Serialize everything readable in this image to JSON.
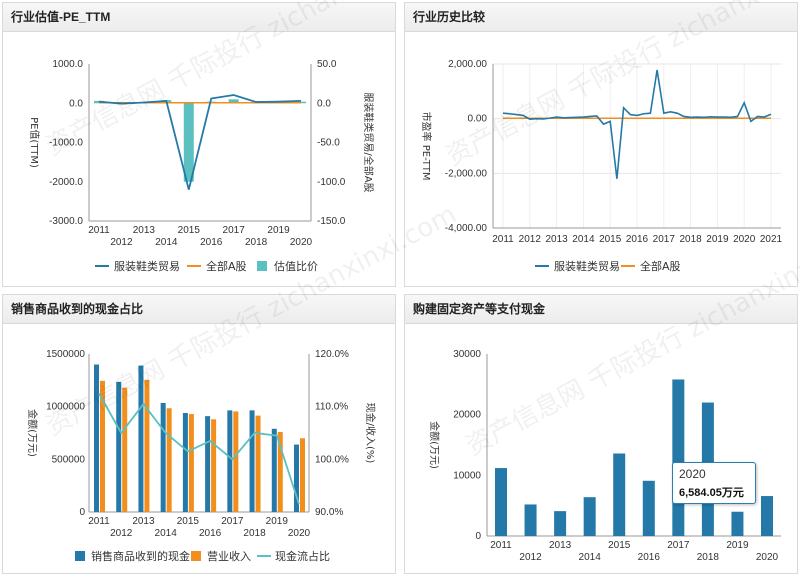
{
  "watermark": "资产信息网 千际投行 zichanxinxi.com",
  "colors": {
    "blue": "#2479a8",
    "orange": "#f28e1c",
    "teal": "#5cc0c0",
    "axis": "#999999"
  },
  "chart_data": [
    {
      "type": "bar+line",
      "title": "行业估值-PE_TTM",
      "ylabel": "PE值(TTM)",
      "y2label": "服装鞋类贸易/全部A股",
      "categories": [
        "2011",
        "2012",
        "2013",
        "2014",
        "2015",
        "2016",
        "2017",
        "2018",
        "2019",
        "2020"
      ],
      "yticks": [
        "1000.0",
        "0.0",
        "-1000.0",
        "-2000.0",
        "-3000.0"
      ],
      "y2ticks": [
        "50.0",
        "0.0",
        "-50.0",
        "-100.0",
        "-150.0"
      ],
      "ylim": [
        -3000,
        1000
      ],
      "y2lim": [
        -150,
        50
      ],
      "series": [
        {
          "name": "服装鞋类贸易",
          "type": "line",
          "values": [
            40,
            -10,
            20,
            60,
            -2200,
            120,
            210,
            30,
            40,
            60
          ]
        },
        {
          "name": "全部A股",
          "type": "line",
          "values": [
            14,
            14,
            14,
            14,
            14,
            14,
            14,
            14,
            14,
            14
          ]
        },
        {
          "name": "估值比价",
          "type": "bar",
          "values": [
            3,
            0,
            1,
            4,
            -100,
            2,
            5,
            1,
            1,
            2
          ]
        }
      ]
    },
    {
      "type": "line",
      "title": "行业历史比较",
      "ylabel": "市盈率 PE-TTM",
      "categories": [
        "2011",
        "2012",
        "2013",
        "2014",
        "2015",
        "2016",
        "2017",
        "2018",
        "2019",
        "2020",
        "2021"
      ],
      "yticks": [
        "2,000.00",
        "0.00",
        "-2,000.00",
        "-4,000.00"
      ],
      "ylim": [
        -4000,
        2000
      ],
      "x": [
        2011.0,
        2011.25,
        2011.5,
        2011.75,
        2012.0,
        2012.25,
        2012.5,
        2012.75,
        2013.0,
        2013.25,
        2013.5,
        2013.75,
        2014.0,
        2014.25,
        2014.5,
        2014.75,
        2015.0,
        2015.25,
        2015.5,
        2015.75,
        2016.0,
        2016.25,
        2016.5,
        2016.75,
        2017.0,
        2017.25,
        2017.5,
        2017.75,
        2018.0,
        2018.25,
        2018.5,
        2018.75,
        2019.0,
        2019.25,
        2019.5,
        2019.75,
        2020.0,
        2020.25,
        2020.5,
        2020.75,
        2021.0
      ],
      "series": [
        {
          "name": "服装鞋类贸易",
          "values": [
            200,
            180,
            150,
            120,
            -20,
            0,
            -10,
            20,
            60,
            30,
            40,
            50,
            60,
            80,
            100,
            -200,
            -100,
            -2200,
            400,
            150,
            120,
            180,
            200,
            1780,
            200,
            250,
            200,
            80,
            50,
            60,
            50,
            70,
            60,
            60,
            50,
            80,
            580,
            -100,
            80,
            60,
            160
          ]
        },
        {
          "name": "全部A股",
          "values": [
            15,
            15,
            15,
            15,
            15,
            15,
            15,
            15,
            15,
            15,
            15,
            15,
            15,
            15,
            15,
            15,
            15,
            15,
            15,
            15,
            15,
            15,
            15,
            15,
            15,
            15,
            15,
            15,
            15,
            15,
            15,
            15,
            15,
            15,
            15,
            15,
            15,
            15,
            15,
            15,
            15
          ]
        }
      ]
    },
    {
      "type": "bar+line",
      "title": "销售商品收到的现金占比",
      "ylabel": "金额(万元)",
      "y2label": "现金/收入(%)",
      "categories": [
        "2011",
        "2012",
        "2013",
        "2014",
        "2015",
        "2016",
        "2017",
        "2018",
        "2019",
        "2020"
      ],
      "yticks": [
        "1500000",
        "1000000",
        "500000",
        "0"
      ],
      "y2ticks": [
        "120.0%",
        "110.0%",
        "100.0%",
        "90.0%"
      ],
      "ylim": [
        0,
        1500000
      ],
      "y2lim": [
        90,
        120
      ],
      "series": [
        {
          "name": "销售商品收到的现金",
          "type": "bar",
          "values": [
            1400000,
            1235000,
            1390000,
            1035000,
            940000,
            910000,
            965000,
            965000,
            790000,
            640000
          ]
        },
        {
          "name": "营业收入",
          "type": "bar",
          "values": [
            1245000,
            1180000,
            1255000,
            985000,
            930000,
            880000,
            955000,
            915000,
            760000,
            700000
          ]
        },
        {
          "name": "现金流占比",
          "type": "line",
          "values": [
            112.5,
            105,
            110.5,
            105,
            101.5,
            103.5,
            100,
            105,
            104.5,
            91.5
          ]
        }
      ]
    },
    {
      "type": "bar",
      "title": "购建固定资产等支付现金",
      "ylabel": "金额(万元)",
      "categories": [
        "2011",
        "2012",
        "2013",
        "2014",
        "2015",
        "2016",
        "2017",
        "2018",
        "2019",
        "2020"
      ],
      "yticks": [
        "30000",
        "20000",
        "10000",
        "0"
      ],
      "ylim": [
        0,
        30000
      ],
      "values": [
        11200,
        5200,
        4100,
        6400,
        13600,
        9100,
        25800,
        22000,
        4000,
        6584.05
      ]
    }
  ],
  "tooltip": {
    "year": "2020",
    "value": "6,584.05万元"
  }
}
